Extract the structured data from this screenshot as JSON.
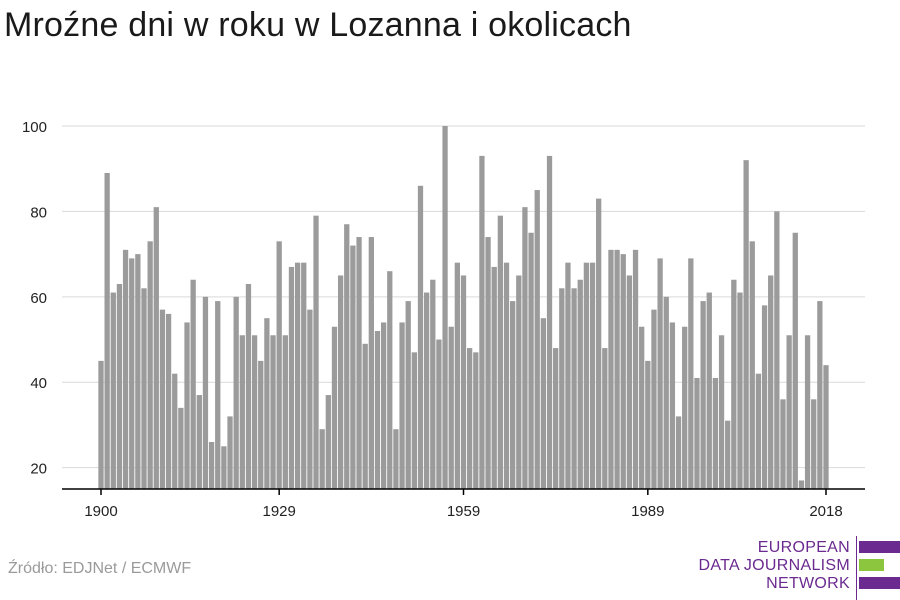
{
  "header": {
    "title": "Mroźne dni w roku w Lozanna i okolicach"
  },
  "footer": {
    "source": "Źródło: EDJNet / ECMWF"
  },
  "logo": {
    "lines": [
      "EUROPEAN",
      "DATA JOURNALISM",
      "NETWORK"
    ],
    "colors": {
      "text": "#6b2a8f",
      "purple": "#6b2a8f",
      "green": "#8cc63f"
    }
  },
  "colors": {
    "bar": "#9b9b9b",
    "grid": "#d9d9d9",
    "axis": "#000000",
    "tick_label": "#222222"
  },
  "chart_data": {
    "type": "bar",
    "title": "Mroźne dni w roku w Lozanna i okolicach",
    "xlabel": "",
    "ylabel": "",
    "x_tick_labels": [
      "1900",
      "1929",
      "1959",
      "1989",
      "2018"
    ],
    "y_ticks": [
      20,
      40,
      60,
      80,
      100
    ],
    "ylim": [
      15,
      100
    ],
    "grid": true,
    "categories": [
      1900,
      1901,
      1902,
      1903,
      1904,
      1905,
      1906,
      1907,
      1908,
      1909,
      1910,
      1911,
      1912,
      1913,
      1914,
      1915,
      1916,
      1917,
      1918,
      1919,
      1920,
      1921,
      1922,
      1923,
      1924,
      1925,
      1926,
      1927,
      1928,
      1929,
      1930,
      1931,
      1932,
      1933,
      1934,
      1935,
      1936,
      1937,
      1938,
      1939,
      1940,
      1941,
      1942,
      1943,
      1944,
      1945,
      1946,
      1947,
      1948,
      1949,
      1950,
      1951,
      1952,
      1953,
      1954,
      1955,
      1956,
      1957,
      1958,
      1959,
      1960,
      1961,
      1962,
      1963,
      1964,
      1965,
      1966,
      1967,
      1968,
      1969,
      1970,
      1971,
      1972,
      1973,
      1974,
      1975,
      1976,
      1977,
      1978,
      1979,
      1980,
      1981,
      1982,
      1983,
      1984,
      1985,
      1986,
      1987,
      1988,
      1989,
      1990,
      1991,
      1992,
      1993,
      1994,
      1995,
      1996,
      1997,
      1998,
      1999,
      2000,
      2001,
      2002,
      2003,
      2004,
      2005,
      2006,
      2007,
      2008,
      2009,
      2010,
      2011,
      2012,
      2013,
      2014,
      2015,
      2016,
      2017,
      2018
    ],
    "values": [
      45,
      89,
      61,
      63,
      71,
      69,
      70,
      62,
      73,
      81,
      57,
      56,
      42,
      34,
      54,
      64,
      37,
      60,
      26,
      59,
      25,
      32,
      60,
      51,
      63,
      51,
      45,
      55,
      51,
      73,
      51,
      67,
      68,
      68,
      57,
      79,
      29,
      37,
      53,
      65,
      77,
      72,
      74,
      49,
      74,
      52,
      54,
      66,
      29,
      54,
      59,
      47,
      86,
      61,
      64,
      50,
      100,
      53,
      68,
      65,
      48,
      47,
      93,
      74,
      67,
      79,
      68,
      59,
      65,
      81,
      75,
      85,
      55,
      93,
      48,
      62,
      68,
      62,
      64,
      68,
      68,
      83,
      48,
      71,
      71,
      70,
      65,
      71,
      53,
      45,
      57,
      69,
      60,
      54,
      32,
      53,
      69,
      41,
      59,
      61,
      41,
      51,
      31,
      64,
      61,
      92,
      73,
      42,
      58,
      65,
      80,
      36,
      51,
      75,
      17,
      51,
      36,
      59,
      44
    ]
  }
}
